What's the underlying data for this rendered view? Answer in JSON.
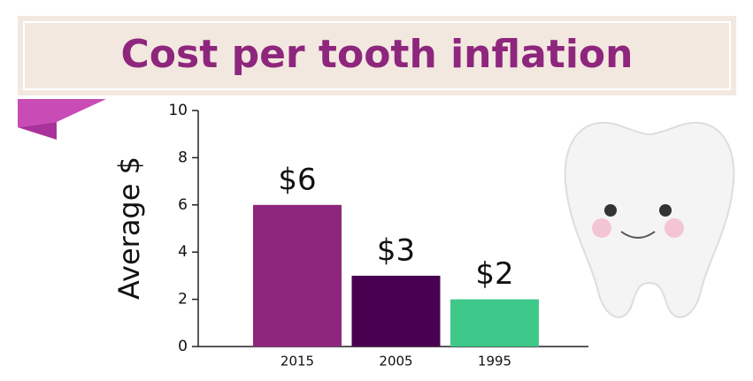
{
  "chart_data": {
    "type": "bar",
    "title": "Cost per tooth inflation",
    "ylabel": "Average $",
    "categories": [
      "2015",
      "2005",
      "1995"
    ],
    "values": [
      6,
      3,
      2
    ],
    "value_labels": [
      "$6",
      "$3",
      "$2"
    ],
    "colors": [
      "#8e267d",
      "#4a0050",
      "#3ec98a"
    ],
    "ylim": [
      0,
      10
    ],
    "yticks": [
      0,
      2,
      4,
      6,
      8,
      10
    ],
    "grid": false
  }
}
